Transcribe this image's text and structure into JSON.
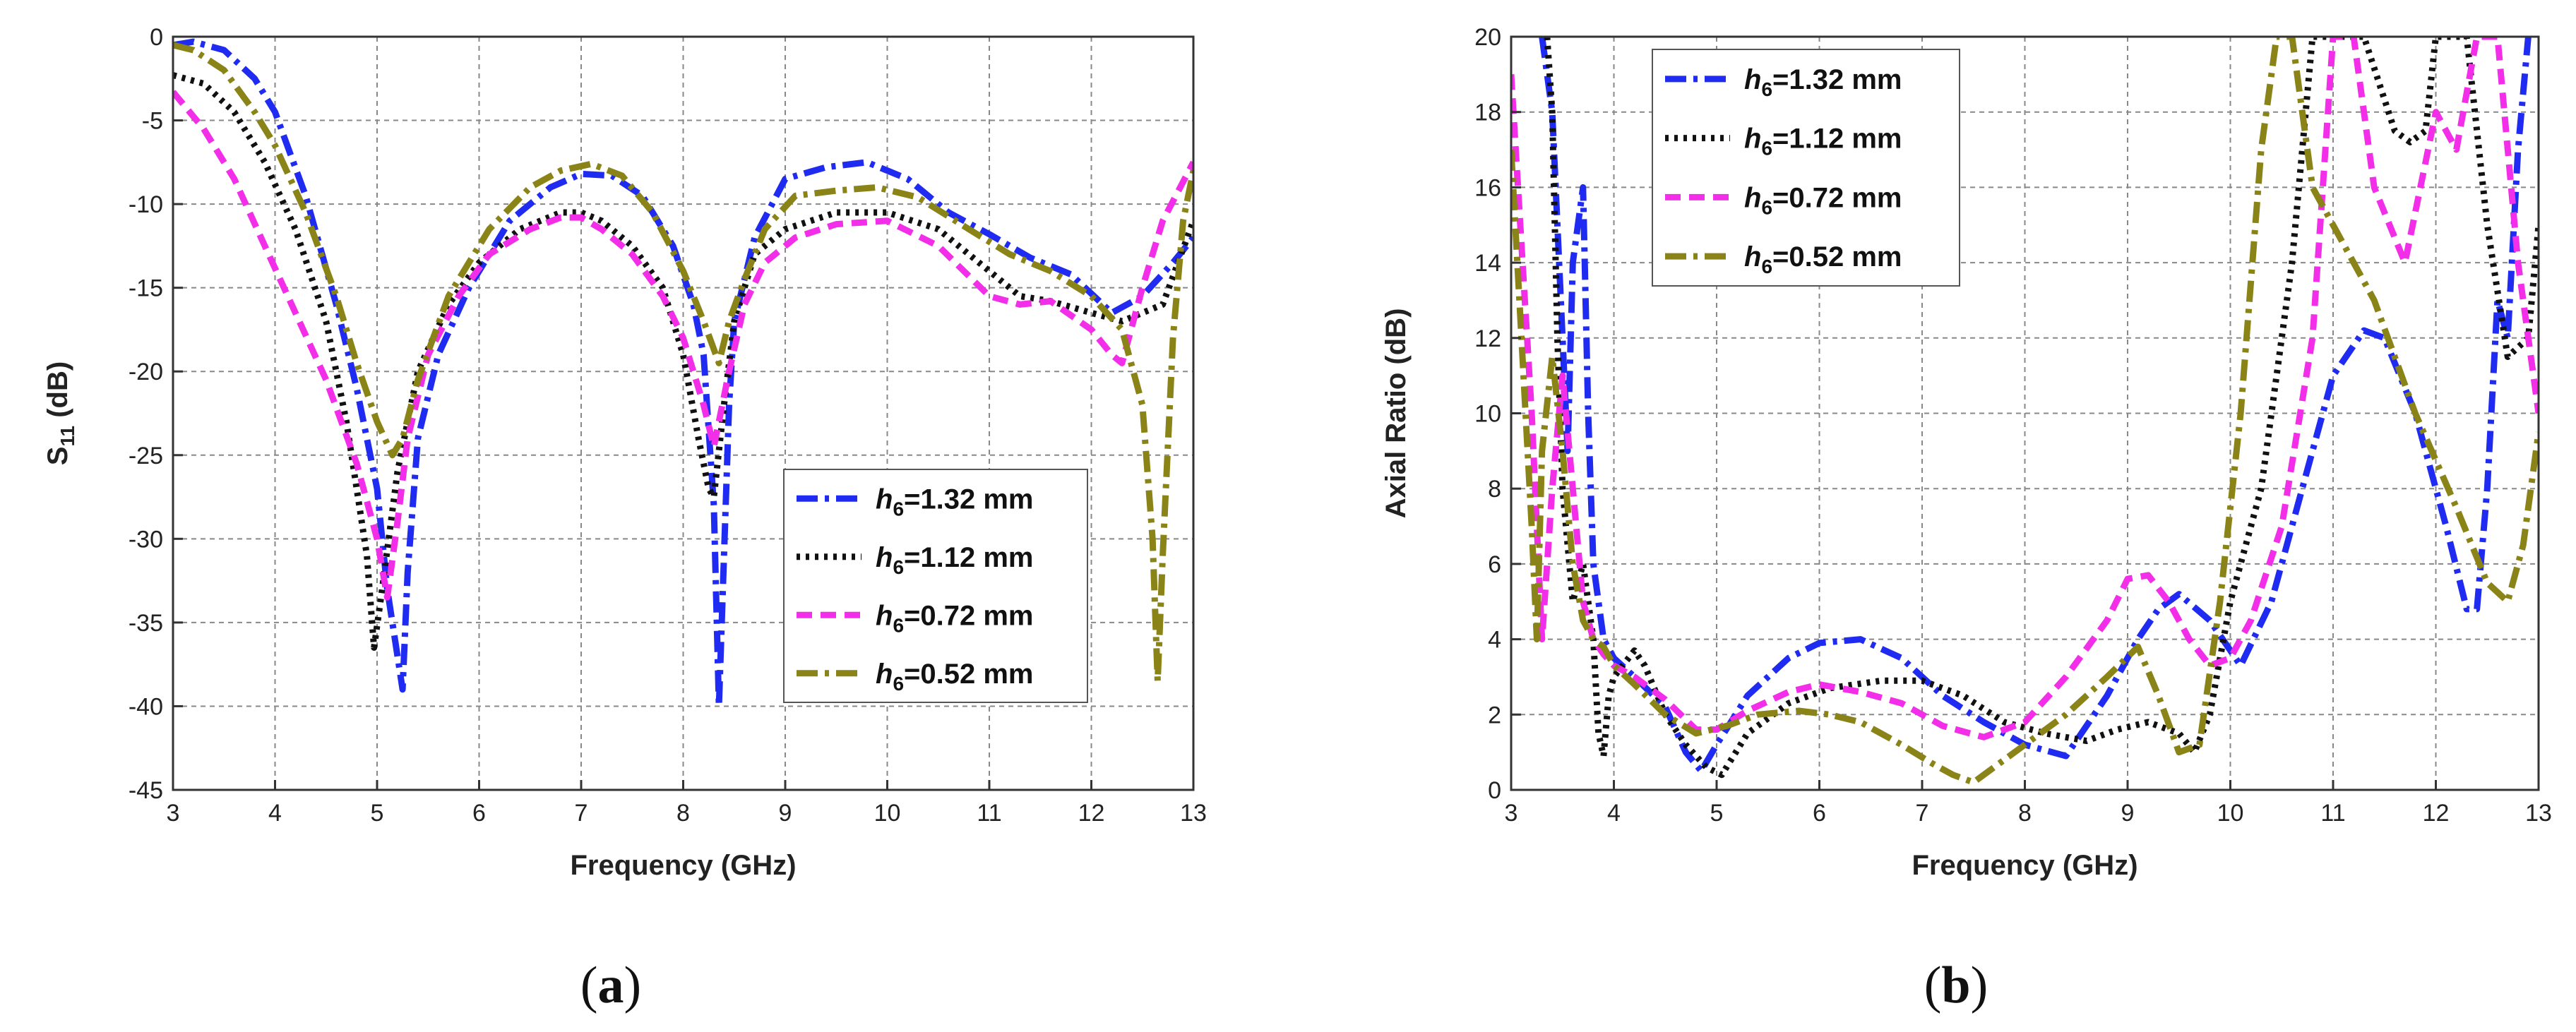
{
  "chart_data": [
    {
      "type": "line",
      "panel_label": "a",
      "title": "",
      "xlabel": "Frequency (GHz)",
      "ylabel": "S11 (dB)",
      "ylabel_main": "S",
      "ylabel_sub": "11",
      "ylabel_unit": " (dB)",
      "xlim": [
        3,
        13
      ],
      "ylim": [
        -45,
        0
      ],
      "xticks": [
        3,
        4,
        5,
        6,
        7,
        8,
        9,
        10,
        11,
        12,
        13
      ],
      "yticks": [
        0,
        -5,
        -10,
        -15,
        -20,
        -25,
        -30,
        -35,
        -40,
        -45
      ],
      "grid": true,
      "legend_position": "lower-right",
      "series": [
        {
          "name": "h6=1.32 mm",
          "italic": "h",
          "sub": "6",
          "text": "=1.32 mm",
          "color": "#1f2bf0",
          "dash": "dashdot",
          "x": [
            3.0,
            3.2,
            3.5,
            3.8,
            4.0,
            4.3,
            4.6,
            4.8,
            5.0,
            5.1,
            5.2,
            5.25,
            5.3,
            5.4,
            5.6,
            5.9,
            6.3,
            6.7,
            7.0,
            7.3,
            7.6,
            7.9,
            8.1,
            8.2,
            8.3,
            8.35,
            8.4,
            8.45,
            8.5,
            8.7,
            9.0,
            9.4,
            9.8,
            10.2,
            10.6,
            11.0,
            11.4,
            11.8,
            12.2,
            12.5,
            12.8,
            13.0
          ],
          "y": [
            -0.5,
            -0.3,
            -0.8,
            -2.5,
            -4.5,
            -9.5,
            -16,
            -21,
            -27,
            -33,
            -37,
            -39,
            -32,
            -24,
            -19,
            -15,
            -11,
            -9,
            -8.2,
            -8.3,
            -9.5,
            -12.5,
            -16,
            -19,
            -28,
            -40,
            -31,
            -22,
            -17,
            -12,
            -8.5,
            -7.8,
            -7.5,
            -8.5,
            -10.5,
            -11.8,
            -13.2,
            -14.2,
            -16.5,
            -15.5,
            -13.5,
            -12
          ]
        },
        {
          "name": "h6=1.12 mm",
          "italic": "h",
          "sub": "6",
          "text": "=1.12 mm",
          "color": "#111111",
          "dash": "dot",
          "x": [
            3.0,
            3.3,
            3.6,
            3.9,
            4.2,
            4.5,
            4.7,
            4.9,
            4.97,
            5.05,
            5.2,
            5.4,
            5.7,
            6.0,
            6.4,
            6.8,
            7.0,
            7.2,
            7.5,
            7.8,
            8.0,
            8.15,
            8.25,
            8.3,
            8.4,
            8.5,
            8.7,
            9.0,
            9.5,
            10.0,
            10.5,
            11.0,
            11.3,
            11.6,
            12.0,
            12.3,
            12.7,
            13.0
          ],
          "y": [
            -2.3,
            -2.8,
            -4.5,
            -7.5,
            -11.5,
            -17,
            -23,
            -31,
            -36.5,
            -33,
            -26,
            -20,
            -16,
            -13.5,
            -11.5,
            -10.5,
            -10.5,
            -11,
            -12.5,
            -15,
            -19,
            -24,
            -27,
            -27.5,
            -22,
            -17,
            -13,
            -11.5,
            -10.5,
            -10.5,
            -11.5,
            -14,
            -15.5,
            -15.8,
            -16.5,
            -17,
            -16,
            -11
          ]
        },
        {
          "name": "h6=0.72 mm",
          "italic": "h",
          "sub": "6",
          "text": "=0.72 mm",
          "color": "#f22ee8",
          "dash": "dash",
          "x": [
            3.0,
            3.3,
            3.6,
            3.9,
            4.2,
            4.5,
            4.8,
            5.0,
            5.1,
            5.2,
            5.3,
            5.5,
            5.8,
            6.1,
            6.5,
            6.8,
            7.0,
            7.2,
            7.5,
            7.8,
            8.0,
            8.2,
            8.3,
            8.45,
            8.6,
            8.8,
            9.1,
            9.5,
            10.0,
            10.5,
            11.0,
            11.3,
            11.6,
            12.0,
            12.2,
            12.3,
            12.5,
            12.7,
            13.0
          ],
          "y": [
            -3.3,
            -5.5,
            -8.5,
            -12.5,
            -16.5,
            -20.5,
            -25.5,
            -30,
            -33.5,
            -29,
            -24,
            -19,
            -15.5,
            -13,
            -11.5,
            -10.8,
            -10.8,
            -11.5,
            -13,
            -15.5,
            -18,
            -22,
            -24.5,
            -20,
            -16,
            -13.5,
            -12,
            -11.2,
            -11,
            -12.5,
            -15.5,
            -16,
            -15.8,
            -17.5,
            -19,
            -19.5,
            -15,
            -11,
            -7.5
          ]
        },
        {
          "name": "h6=0.52 mm",
          "italic": "h",
          "sub": "6",
          "text": "=0.52 mm",
          "color": "#8a8418",
          "dash": "dashdot",
          "x": [
            3.0,
            3.2,
            3.5,
            3.8,
            4.0,
            4.3,
            4.6,
            4.8,
            5.0,
            5.15,
            5.25,
            5.4,
            5.7,
            6.1,
            6.5,
            6.8,
            7.1,
            7.4,
            7.7,
            8.0,
            8.2,
            8.35,
            8.45,
            8.6,
            8.8,
            9.1,
            9.5,
            9.9,
            10.3,
            10.8,
            11.2,
            11.6,
            12.0,
            12.3,
            12.5,
            12.6,
            12.65,
            12.7,
            12.8,
            12.9,
            13.0
          ],
          "y": [
            -0.5,
            -0.8,
            -2,
            -4.5,
            -6.5,
            -10.5,
            -15.5,
            -19.5,
            -23,
            -25,
            -24,
            -20.5,
            -15.5,
            -11.5,
            -9,
            -8,
            -7.6,
            -8.3,
            -10.5,
            -14,
            -17,
            -19.5,
            -17,
            -14.5,
            -11.5,
            -9.5,
            -9.2,
            -9,
            -9.6,
            -11.5,
            -13,
            -14,
            -15.5,
            -17.5,
            -22,
            -30,
            -38.5,
            -31,
            -18,
            -11,
            -8
          ]
        }
      ]
    },
    {
      "type": "line",
      "panel_label": "b",
      "title": "",
      "xlabel": "Frequency (GHz)",
      "ylabel": "Axial Ratio (dB)",
      "xlim": [
        3,
        13
      ],
      "ylim": [
        0,
        20
      ],
      "xticks": [
        3,
        4,
        5,
        6,
        7,
        8,
        9,
        10,
        11,
        12,
        13
      ],
      "yticks": [
        0,
        2,
        4,
        6,
        8,
        10,
        12,
        14,
        16,
        18,
        20
      ],
      "grid": true,
      "legend_position": "top-left",
      "series": [
        {
          "name": "h6=1.32 mm",
          "italic": "h",
          "sub": "6",
          "text": "=1.32 mm",
          "color": "#1f2bf0",
          "dash": "dashdot",
          "x": [
            3.3,
            3.4,
            3.5,
            3.55,
            3.6,
            3.7,
            3.75,
            3.8,
            3.9,
            4.0,
            4.2,
            4.5,
            4.7,
            4.85,
            5.0,
            5.3,
            5.7,
            6.0,
            6.4,
            6.8,
            7.2,
            7.6,
            8.0,
            8.4,
            8.8,
            9.1,
            9.3,
            9.5,
            9.8,
            10.1,
            10.4,
            10.7,
            11.0,
            11.3,
            11.5,
            11.8,
            12.1,
            12.3,
            12.4,
            12.5,
            12.6,
            12.7,
            12.8,
            12.9
          ],
          "y": [
            20,
            18,
            12,
            9,
            14,
            16,
            10,
            6,
            4,
            3.5,
            3,
            2.2,
            1,
            0.5,
            1.2,
            2.5,
            3.5,
            3.9,
            4,
            3.5,
            2.5,
            1.8,
            1.2,
            0.9,
            2.5,
            4,
            4.8,
            5.2,
            4.5,
            3.3,
            5,
            8,
            11,
            12.2,
            12,
            10,
            7,
            4.8,
            4.8,
            8,
            13,
            12,
            17,
            20
          ]
        },
        {
          "name": "h6=1.12 mm",
          "italic": "h",
          "sub": "6",
          "text": "=1.12 mm",
          "color": "#111111",
          "dash": "dot",
          "x": [
            3.35,
            3.4,
            3.45,
            3.5,
            3.6,
            3.7,
            3.8,
            3.85,
            3.9,
            3.95,
            4.0,
            4.2,
            4.3,
            4.5,
            4.7,
            4.9,
            5.05,
            5.3,
            5.7,
            6.1,
            6.6,
            7.0,
            7.4,
            7.8,
            8.2,
            8.6,
            8.9,
            9.2,
            9.5,
            9.65,
            9.8,
            10.0,
            10.3,
            10.6,
            10.8,
            11.0,
            11.3,
            11.6,
            11.75,
            11.9,
            12.0,
            12.1,
            12.3,
            12.5,
            12.7,
            12.9,
            13.0
          ],
          "y": [
            20,
            18,
            12,
            8,
            5,
            6,
            4,
            1.5,
            0.9,
            2.5,
            3,
            3.7,
            3.3,
            2,
            1.2,
            0.6,
            0.4,
            1.5,
            2.3,
            2.7,
            2.9,
            2.9,
            2.5,
            1.8,
            1.5,
            1.3,
            1.6,
            1.8,
            1.5,
            1,
            2,
            5,
            8,
            14,
            20,
            20,
            20,
            17.5,
            17.2,
            17.5,
            20,
            20,
            20,
            15,
            11.5,
            12,
            15
          ]
        },
        {
          "name": "h6=0.72 mm",
          "italic": "h",
          "sub": "6",
          "text": "=0.72 mm",
          "color": "#f22ee8",
          "dash": "dash",
          "x": [
            3.0,
            3.2,
            3.3,
            3.4,
            3.5,
            3.6,
            3.7,
            3.8,
            3.9,
            4.0,
            4.2,
            4.5,
            4.8,
            5.0,
            5.3,
            5.7,
            6.0,
            6.4,
            6.8,
            7.2,
            7.6,
            8.0,
            8.4,
            8.8,
            9.0,
            9.2,
            9.4,
            9.6,
            9.8,
            10.0,
            10.2,
            10.5,
            10.8,
            11.0,
            11.2,
            11.4,
            11.7,
            12.0,
            12.2,
            12.4,
            12.6,
            12.8,
            13.0
          ],
          "y": [
            19,
            10,
            4,
            8,
            11,
            8,
            5,
            4,
            3.6,
            3.3,
            3,
            2.4,
            1.6,
            1.6,
            2.1,
            2.6,
            2.8,
            2.6,
            2.3,
            1.7,
            1.4,
            1.8,
            3,
            4.5,
            5.6,
            5.7,
            5,
            4,
            3.3,
            3.5,
            4.5,
            7,
            12,
            20,
            20,
            16,
            14,
            18,
            17,
            20,
            20,
            14,
            10
          ]
        },
        {
          "name": "h6=0.52 mm",
          "italic": "h",
          "sub": "6",
          "text": "=0.52 mm",
          "color": "#8a8418",
          "dash": "dashdot",
          "x": [
            3.0,
            3.1,
            3.2,
            3.25,
            3.3,
            3.4,
            3.5,
            3.6,
            3.7,
            3.8,
            3.9,
            4.0,
            4.2,
            4.5,
            4.8,
            5.1,
            5.4,
            5.8,
            6.1,
            6.4,
            6.8,
            7.1,
            7.3,
            7.5,
            7.7,
            8.0,
            8.4,
            8.8,
            9.1,
            9.3,
            9.5,
            9.7,
            9.9,
            10.1,
            10.3,
            10.45,
            10.6,
            10.8,
            11.0,
            11.4,
            11.8,
            12.2,
            12.5,
            12.7,
            12.85,
            13.0
          ],
          "y": [
            17,
            12,
            7,
            4,
            9,
            11.5,
            9,
            6,
            4.5,
            4,
            3.8,
            3.3,
            2.8,
            2,
            1.5,
            1.7,
            2,
            2.1,
            2,
            1.8,
            1.2,
            0.7,
            0.4,
            0.2,
            0.6,
            1.2,
            2,
            3,
            3.8,
            2.5,
            1,
            1.2,
            5,
            10,
            17,
            20,
            20,
            16,
            15,
            13,
            10,
            7.5,
            5.5,
            5,
            6.5,
            9.5
          ]
        }
      ]
    }
  ]
}
